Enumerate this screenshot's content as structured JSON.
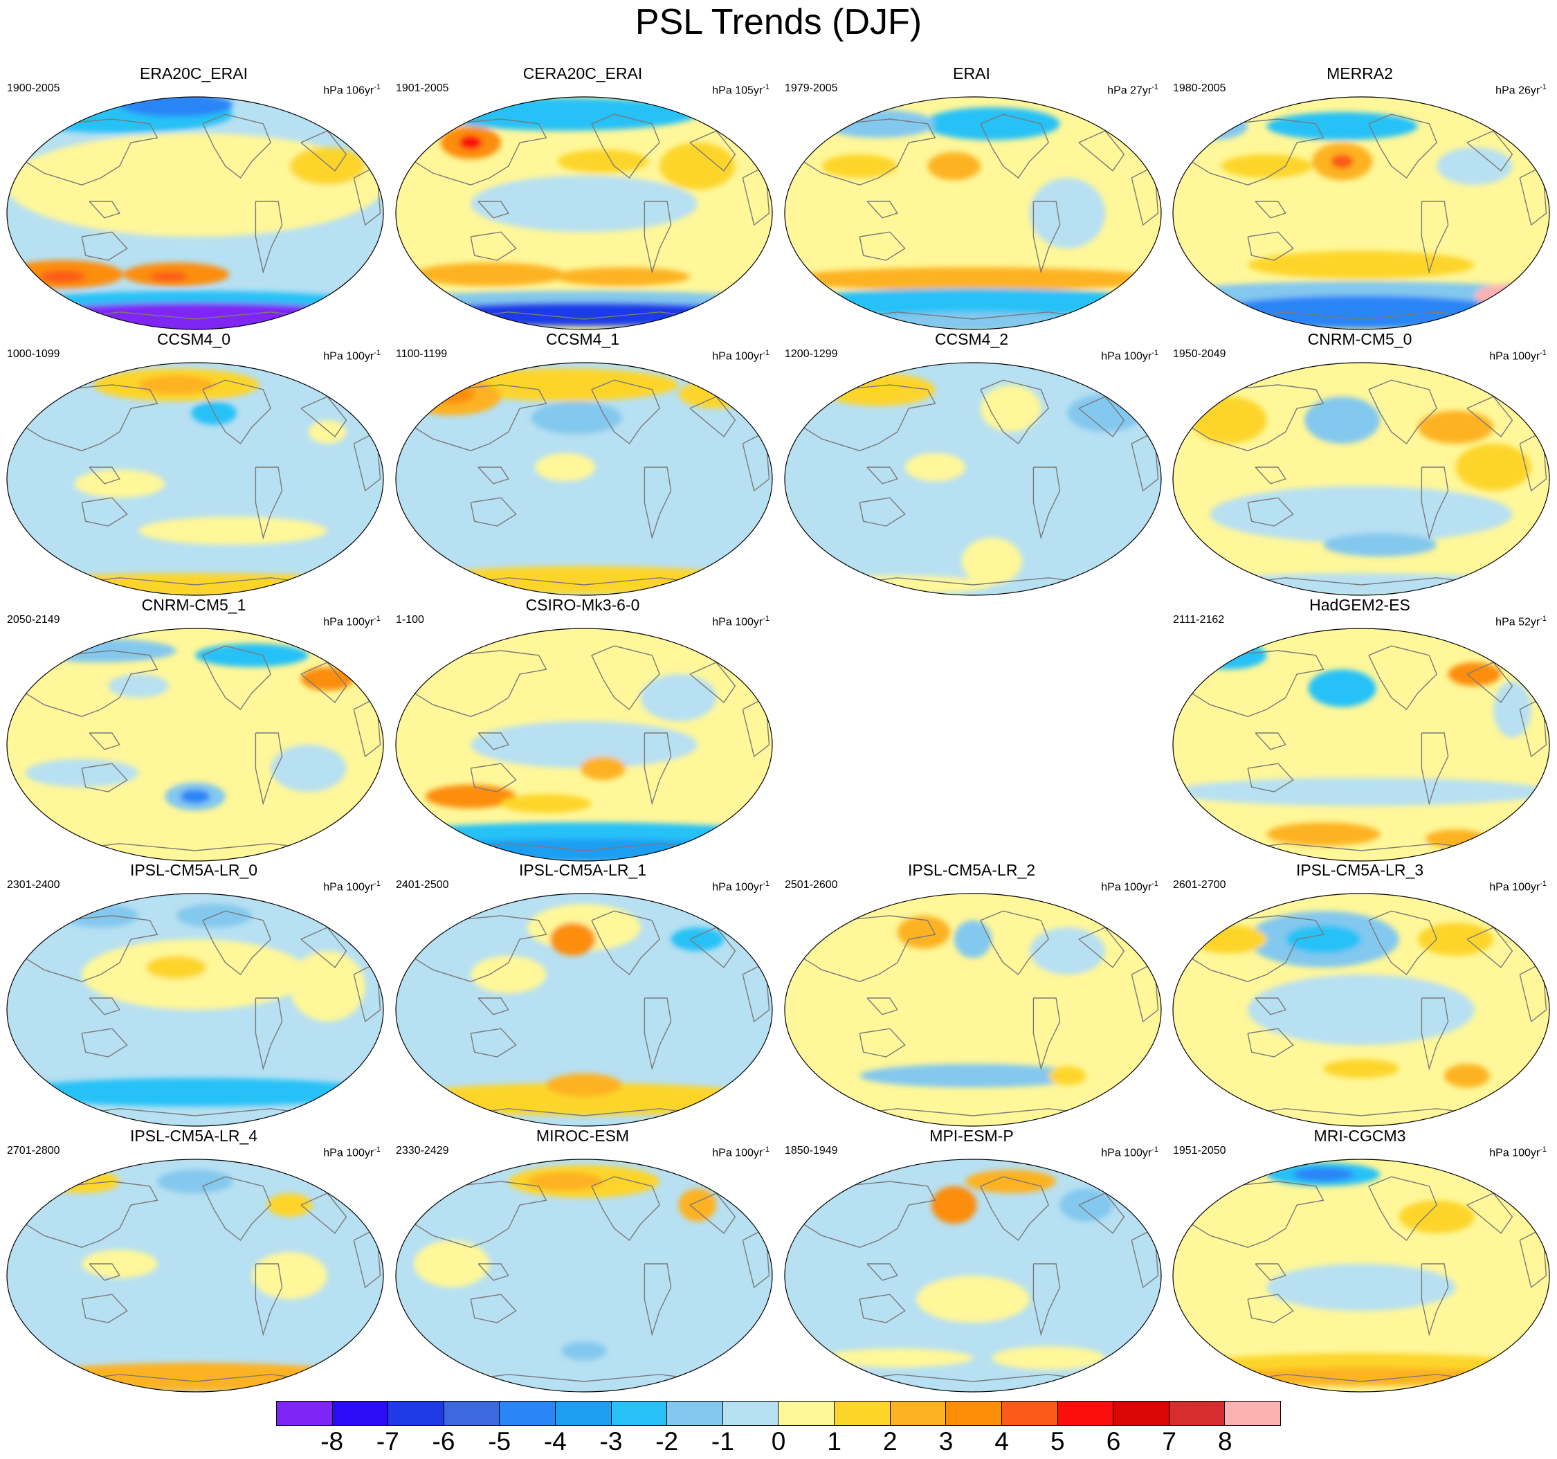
{
  "title": "PSL Trends (DJF)",
  "units_prefix": "hPa",
  "units_suffix": "yr",
  "units_exponent": "-1",
  "panels": [
    {
      "name": "ERA20C_ERAI",
      "years": "1900-2005",
      "span": "106",
      "pattern": "era20c"
    },
    {
      "name": "CERA20C_ERAI",
      "years": "1901-2005",
      "span": "105",
      "pattern": "cera20c"
    },
    {
      "name": "ERAI",
      "years": "1979-2005",
      "span": "27",
      "pattern": "erai"
    },
    {
      "name": "MERRA2",
      "years": "1980-2005",
      "span": "26",
      "pattern": "merra2"
    },
    {
      "name": "CCSM4_0",
      "years": "1000-1099",
      "span": "100",
      "pattern": "ccsm0"
    },
    {
      "name": "CCSM4_1",
      "years": "1100-1199",
      "span": "100",
      "pattern": "ccsm1"
    },
    {
      "name": "CCSM4_2",
      "years": "1200-1299",
      "span": "100",
      "pattern": "ccsm2"
    },
    {
      "name": "CNRM-CM5_0",
      "years": "1950-2049",
      "span": "100",
      "pattern": "cnrm0"
    },
    {
      "name": "CNRM-CM5_1",
      "years": "2050-2149",
      "span": "100",
      "pattern": "cnrm1"
    },
    {
      "name": "CSIRO-Mk3-6-0",
      "years": "1-100",
      "span": "100",
      "pattern": "csiro"
    },
    {
      "name": "HadGEM2-ES",
      "years": "2111-2162",
      "span": "52",
      "pattern": "hadgem"
    },
    {
      "name": "IPSL-CM5A-LR_0",
      "years": "2301-2400",
      "span": "100",
      "pattern": "ipsl0"
    },
    {
      "name": "IPSL-CM5A-LR_1",
      "years": "2401-2500",
      "span": "100",
      "pattern": "ipsl1"
    },
    {
      "name": "IPSL-CM5A-LR_2",
      "years": "2501-2600",
      "span": "100",
      "pattern": "ipsl2"
    },
    {
      "name": "IPSL-CM5A-LR_3",
      "years": "2601-2700",
      "span": "100",
      "pattern": "ipsl3"
    },
    {
      "name": "IPSL-CM5A-LR_4",
      "years": "2701-2800",
      "span": "100",
      "pattern": "ipsl4"
    },
    {
      "name": "MIROC-ESM",
      "years": "2330-2429",
      "span": "100",
      "pattern": "miroc"
    },
    {
      "name": "MPI-ESM-P",
      "years": "1850-1949",
      "span": "100",
      "pattern": "mpi"
    },
    {
      "name": "MRI-CGCM3",
      "years": "1951-2050",
      "span": "100",
      "pattern": "mri"
    }
  ],
  "colorbar": {
    "ticks": [
      "-8",
      "-7",
      "-6",
      "-5",
      "-4",
      "-3",
      "-2",
      "-1",
      "0",
      "1",
      "2",
      "3",
      "4",
      "5",
      "6",
      "7",
      "8"
    ],
    "colors": [
      "#7f25f5",
      "#2a0cf7",
      "#1f3be8",
      "#3b6ade",
      "#2a85f7",
      "#1e9ef3",
      "#28c1f7",
      "#83c8ee",
      "#b7e0f2",
      "#fff799",
      "#fdd52a",
      "#fdb221",
      "#fc8d07",
      "#fb5a19",
      "#fb0e0e",
      "#db0606",
      "#d62e2e",
      "#fdb2b2"
    ]
  }
}
